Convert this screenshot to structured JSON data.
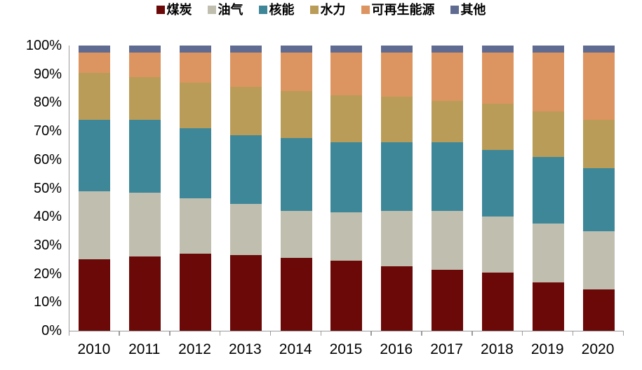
{
  "chart_data": {
    "type": "bar",
    "variant": "stacked-100-percent",
    "title": "",
    "xlabel": "",
    "ylabel": "",
    "grid": false,
    "legend_position": "top",
    "ylim": [
      0,
      100
    ],
    "y_tick_labels": [
      "0%",
      "10%",
      "20%",
      "30%",
      "40%",
      "50%",
      "60%",
      "70%",
      "80%",
      "90%",
      "100%"
    ],
    "categories": [
      "2010",
      "2011",
      "2012",
      "2013",
      "2014",
      "2015",
      "2016",
      "2017",
      "2018",
      "2019",
      "2020"
    ],
    "series": [
      {
        "name": "煤炭",
        "color": "#6B0808",
        "values": [
          25,
          26,
          27,
          26.5,
          25.5,
          24.5,
          22.5,
          21.5,
          20.5,
          17,
          14.5
        ]
      },
      {
        "name": "油气",
        "color": "#C0BFAF",
        "values": [
          24,
          22.5,
          19.5,
          18,
          16.5,
          17,
          19.5,
          20.5,
          19.5,
          20.5,
          20.5
        ]
      },
      {
        "name": "核能",
        "color": "#3E8799",
        "values": [
          25,
          25.5,
          24.5,
          24,
          25.5,
          24.5,
          24,
          24,
          23.5,
          23.5,
          22
        ]
      },
      {
        "name": "水力",
        "color": "#B99C58",
        "values": [
          16.5,
          15,
          16,
          17,
          16.5,
          16.5,
          16,
          14.5,
          16,
          16,
          17
        ]
      },
      {
        "name": "可再生能源",
        "color": "#DC9560",
        "values": [
          7,
          8.5,
          10.5,
          12,
          13.5,
          15,
          15.5,
          17,
          18,
          20.5,
          23.5
        ]
      },
      {
        "name": "其他",
        "color": "#5F6B91",
        "values": [
          2.5,
          2.5,
          2.5,
          2.5,
          2.5,
          2.5,
          2.5,
          2.5,
          2.5,
          2.5,
          2.5
        ]
      }
    ]
  },
  "colors": {
    "background": "#FFFFFF",
    "axis_line": "#9B9B9B",
    "text": "#000000"
  }
}
